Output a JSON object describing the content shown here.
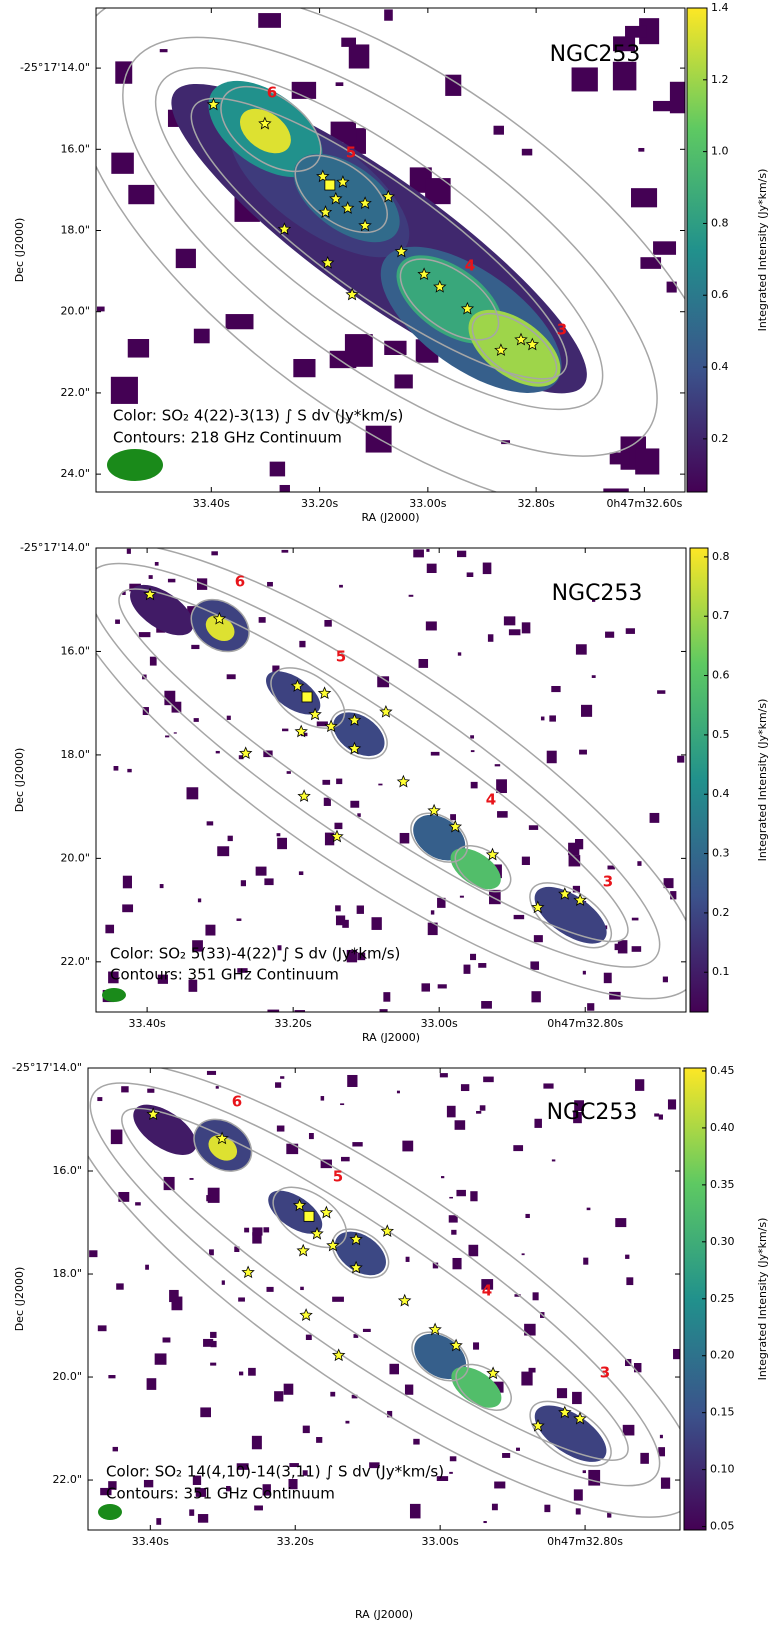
{
  "chart_data": [
    {
      "type": "image",
      "annotation": "NGC253",
      "color_label": "Color: SO₂ 4(22)-3(13) ∫ S dv (Jy*km/s)",
      "contour_label": "Contours: 218 GHz Continuum",
      "xlabel": "RA (J2000)",
      "ylabel": "Dec (J2000)",
      "colorbar_label": "Integrated Intensity (Jy*km/s)",
      "colormap": "viridis",
      "xlim": [
        33.613,
        32.525
      ],
      "ylim": [
        12.52,
        24.44
      ],
      "clim": [
        0.052,
        1.4
      ],
      "xticks": [
        {
          "value": 33.4,
          "label": "33.40s"
        },
        {
          "value": 33.2,
          "label": "33.20s"
        },
        {
          "value": 33.0,
          "label": "33.00s"
        },
        {
          "value": 32.8,
          "label": "32.80s"
        },
        {
          "value": 32.6,
          "label": "0h47m32.60s"
        }
      ],
      "yticks": [
        {
          "value": 14,
          "label": "-25°17'14.0\""
        },
        {
          "value": 16,
          "label": "16.0\""
        },
        {
          "value": 18,
          "label": "18.0\""
        },
        {
          "value": 20,
          "label": "20.0\""
        },
        {
          "value": 22,
          "label": "22.0\""
        },
        {
          "value": 24,
          "label": "24.0\""
        }
      ],
      "cticks": [
        0.2,
        0.4,
        0.6,
        0.8,
        {
          "value": 1,
          "label": "1.0"
        },
        1.2,
        1.4
      ],
      "regions": [
        "6",
        "5",
        "4",
        "3"
      ],
      "region_color": "#e8141a",
      "beam_color": "#1a8a1a",
      "star_color": "#ffff33",
      "stars": {
        "x": [
          33.396,
          33.301,
          33.194,
          33.157,
          33.17,
          33.189,
          33.148,
          33.116,
          33.073,
          33.116,
          33.265,
          33.049,
          33.185,
          33.14,
          33.007,
          32.978,
          32.927,
          32.865,
          32.828,
          32.807
        ],
        "y": [
          14.9,
          15.37,
          16.67,
          16.81,
          17.22,
          17.55,
          17.45,
          17.33,
          17.17,
          17.88,
          17.97,
          18.52,
          18.8,
          19.58,
          19.08,
          19.39,
          19.93,
          20.95,
          20.69,
          20.81
        ]
      },
      "square": {
        "x": [
          33.181
        ],
        "y": [
          16.88
        ]
      }
    },
    {
      "type": "image",
      "annotation": "NGC253",
      "color_label": "Color: SO₂ 5(33)-4(22) ∫ S dv (Jy*km/s)",
      "contour_label": "Contours: 351 GHz Continuum",
      "xlabel": "RA (J2000)",
      "ylabel": "Dec (J2000)",
      "colorbar_label": "Integrated Intensity (Jy*km/s)",
      "colormap": "viridis",
      "xlim": [
        33.47,
        32.662
      ],
      "ylim": [
        14,
        22.97
      ],
      "clim": [
        0.033,
        0.815
      ],
      "xticks": [
        {
          "value": 33.4,
          "label": "33.40s"
        },
        {
          "value": 33.2,
          "label": "33.20s"
        },
        {
          "value": 33.0,
          "label": "33.00s"
        },
        {
          "value": 32.8,
          "label": "0h47m32.80s"
        }
      ],
      "yticks": [
        {
          "value": 14,
          "label": "-25°17'14.0\""
        },
        {
          "value": 16,
          "label": "16.0\""
        },
        {
          "value": 18,
          "label": "18.0\""
        },
        {
          "value": 20,
          "label": "20.0\""
        },
        {
          "value": 22,
          "label": "22.0\""
        }
      ],
      "cticks": [
        0.1,
        0.2,
        0.3,
        0.4,
        0.5,
        0.6,
        0.7,
        0.8
      ],
      "regions": [
        "6",
        "5",
        "4",
        "3"
      ],
      "region_color": "#e8141a",
      "beam_color": "#1a8a1a",
      "star_color": "#ffff33",
      "stars": {
        "x": [
          33.396,
          33.301,
          33.194,
          33.157,
          33.17,
          33.189,
          33.148,
          33.116,
          33.073,
          33.116,
          33.265,
          33.049,
          33.185,
          33.14,
          33.007,
          32.978,
          32.927,
          32.865,
          32.828,
          32.807
        ],
        "y": [
          14.9,
          15.37,
          16.67,
          16.81,
          17.22,
          17.55,
          17.45,
          17.33,
          17.17,
          17.88,
          17.97,
          18.52,
          18.8,
          19.58,
          19.08,
          19.39,
          19.93,
          20.95,
          20.69,
          20.81
        ]
      },
      "square": {
        "x": [
          33.181
        ],
        "y": [
          16.88
        ]
      }
    },
    {
      "type": "image",
      "annotation": "NGC253",
      "color_label": "Color: SO₂ 14(4,10)-14(3,11) ∫ S dv (Jy*km/s)",
      "contour_label": "Contours: 351 GHz Continuum",
      "xlabel": "RA (J2000)",
      "ylabel": "Dec (J2000)",
      "colorbar_label": "Integrated Intensity (Jy*km/s)",
      "colormap": "viridis",
      "xlim": [
        33.486,
        32.669
      ],
      "ylim": [
        14,
        22.97
      ],
      "clim": [
        0.047,
        0.4526
      ],
      "xticks": [
        {
          "value": 33.4,
          "label": "33.40s"
        },
        {
          "value": 33.2,
          "label": "33.20s"
        },
        {
          "value": 33.0,
          "label": "33.00s"
        },
        {
          "value": 32.8,
          "label": "0h47m32.80s"
        }
      ],
      "yticks": [
        {
          "value": 14,
          "label": "-25°17'14.0\""
        },
        {
          "value": 16,
          "label": "16.0\""
        },
        {
          "value": 18,
          "label": "18.0\""
        },
        {
          "value": 20,
          "label": "20.0\""
        },
        {
          "value": 22,
          "label": "22.0\""
        }
      ],
      "cticks": [
        0.05,
        {
          "value": 0.1,
          "label": "0.10"
        },
        0.15,
        {
          "value": 0.2,
          "label": "0.20"
        },
        0.25,
        {
          "value": 0.3,
          "label": "0.30"
        },
        0.35,
        {
          "value": 0.4,
          "label": "0.40"
        },
        0.45
      ],
      "regions": [
        "6",
        "5",
        "4",
        "3"
      ],
      "region_color": "#e8141a",
      "beam_color": "#1a8a1a",
      "star_color": "#ffff33",
      "stars": {
        "x": [
          33.396,
          33.301,
          33.194,
          33.157,
          33.17,
          33.189,
          33.148,
          33.116,
          33.073,
          33.116,
          33.265,
          33.049,
          33.185,
          33.14,
          33.007,
          32.978,
          32.927,
          32.865,
          32.828,
          32.807
        ],
        "y": [
          14.9,
          15.37,
          16.67,
          16.81,
          17.22,
          17.55,
          17.45,
          17.33,
          17.17,
          17.88,
          17.97,
          18.52,
          18.8,
          19.58,
          19.08,
          19.39,
          19.93,
          20.95,
          20.69,
          20.81
        ]
      },
      "square": {
        "x": [
          33.181
        ],
        "y": [
          16.88
        ]
      }
    }
  ]
}
